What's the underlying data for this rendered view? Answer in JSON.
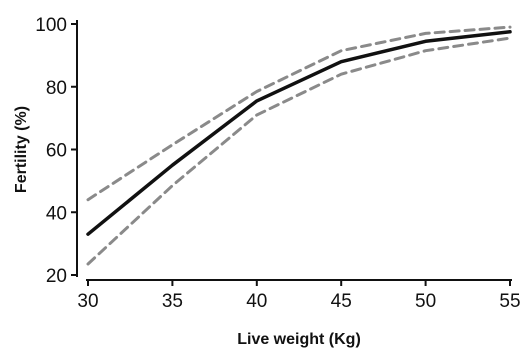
{
  "chart_data": {
    "type": "line",
    "title": "",
    "xlabel": "Live weight (Kg)",
    "ylabel": "Fertility (%)",
    "xlim": [
      30,
      55
    ],
    "ylim": [
      20,
      100
    ],
    "x": [
      30,
      35,
      40,
      45,
      50,
      55
    ],
    "xticks": [
      "30",
      "35",
      "40",
      "45",
      "50",
      "55"
    ],
    "yticks": [
      "20",
      "40",
      "60",
      "80",
      "100"
    ],
    "grid": false,
    "legend": "none",
    "series": [
      {
        "values": [
          33,
          55,
          75.5,
          88,
          94.5,
          97.5
        ],
        "color": "#111111",
        "style": "solid"
      },
      {
        "values": [
          44,
          61.5,
          78.5,
          91.5,
          97,
          99
        ],
        "color": "#8a8a8a",
        "style": "dashed"
      },
      {
        "values": [
          23.5,
          48.5,
          71,
          84,
          91.5,
          95.5
        ],
        "color": "#8a8a8a",
        "style": "dashed"
      }
    ]
  }
}
